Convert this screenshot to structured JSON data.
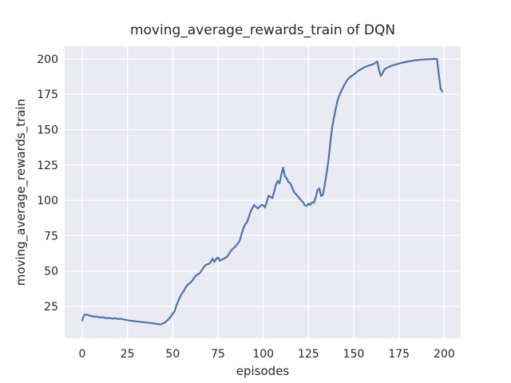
{
  "chart_data": {
    "type": "line",
    "title": "moving_average_rewards_train of DQN",
    "xlabel": "episodes",
    "ylabel": "moving_average_rewards_train",
    "x_ticks": [
      0,
      25,
      50,
      75,
      100,
      125,
      150,
      175,
      200
    ],
    "y_ticks": [
      25,
      50,
      75,
      100,
      125,
      150,
      175,
      200
    ],
    "xlim": [
      -9.7,
      209.1
    ],
    "ylim": [
      2.4,
      209.0
    ],
    "grid": true,
    "legend": false,
    "colors": {
      "line": "#4C72B0",
      "plot_bg": "#EAEAF2",
      "grid": "#FFFFFF",
      "text": "#262626",
      "figure_bg": "#FFFFFF"
    },
    "series": [
      {
        "name": "moving_average_rewards_train",
        "x_start": 0,
        "x_step": 1,
        "y": [
          15.0,
          18.8,
          19.3,
          18.9,
          18.5,
          18.2,
          17.9,
          17.6,
          17.8,
          17.4,
          17.1,
          17.4,
          17.1,
          16.8,
          16.6,
          16.9,
          16.5,
          16.2,
          16.7,
          16.4,
          16.0,
          16.3,
          16.0,
          15.7,
          15.5,
          15.2,
          15.0,
          14.8,
          14.7,
          14.5,
          14.4,
          14.2,
          14.1,
          13.9,
          13.8,
          13.6,
          13.5,
          13.3,
          13.2,
          13.0,
          12.9,
          12.7,
          12.5,
          12.3,
          12.6,
          13.1,
          13.9,
          15.0,
          16.4,
          18.0,
          19.8,
          21.5,
          25.5,
          28.5,
          31.5,
          34.0,
          35.6,
          38.0,
          40.0,
          41.0,
          42.0,
          43.5,
          45.5,
          47.0,
          47.8,
          48.5,
          50.5,
          52.5,
          54.0,
          54.8,
          55.0,
          56.3,
          58.8,
          56.5,
          58.5,
          59.6,
          57.2,
          58.0,
          58.5,
          59.3,
          60.1,
          62.0,
          64.0,
          65.5,
          66.5,
          68.0,
          69.5,
          71.5,
          76.0,
          80.0,
          83.0,
          84.5,
          88.0,
          92.0,
          94.5,
          96.8,
          95.5,
          94.2,
          95.5,
          96.8,
          96.5,
          95.0,
          99.0,
          103.4,
          102.5,
          101.5,
          106.0,
          111.0,
          113.7,
          112.0,
          118.0,
          123.2,
          117.0,
          115.6,
          112.8,
          112.0,
          109.0,
          106.0,
          104.5,
          103.0,
          101.5,
          100.0,
          98.7,
          96.5,
          95.9,
          97.7,
          96.8,
          98.7,
          98.3,
          102.0,
          107.2,
          108.5,
          103.0,
          104.0,
          111.0,
          119.0,
          128.0,
          140.0,
          151.0,
          158.0,
          164.4,
          170.5,
          174.0,
          177.0,
          179.5,
          182.0,
          184.2,
          186.0,
          187.2,
          188.1,
          189.0,
          190.0,
          191.2,
          192.0,
          192.8,
          193.5,
          194.2,
          194.7,
          195.2,
          195.6,
          196.0,
          196.5,
          197.3,
          198.3,
          192.0,
          188.0,
          190.0,
          192.7,
          193.5,
          194.2,
          194.8,
          195.2,
          195.7,
          196.1,
          196.4,
          196.8,
          197.1,
          197.4,
          197.7,
          198.0,
          198.3,
          198.5,
          198.7,
          198.9,
          199.1,
          199.2,
          199.4,
          199.5,
          199.6,
          199.7,
          199.8,
          199.8,
          199.9,
          199.9,
          200.0,
          200.0,
          199.9,
          189.0,
          179.0,
          177.0
        ]
      }
    ]
  }
}
